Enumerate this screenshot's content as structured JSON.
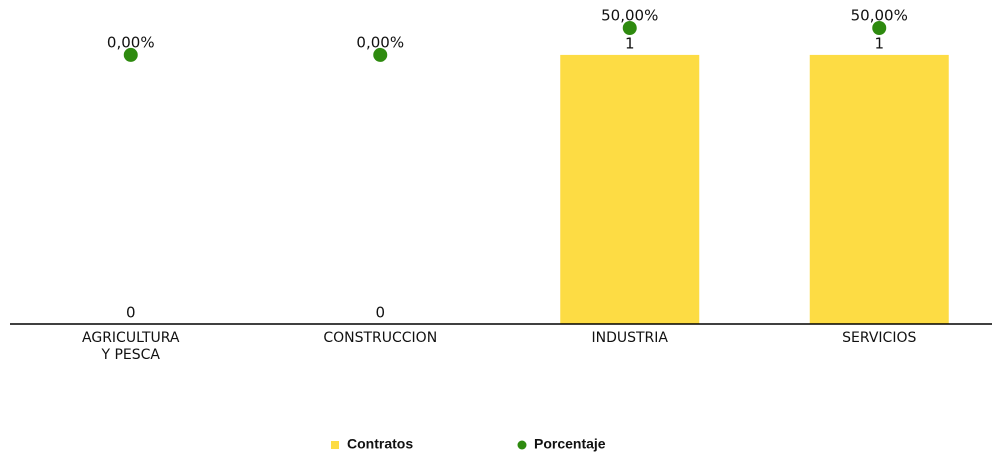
{
  "chart_data": {
    "type": "bar",
    "categories": [
      "AGRICULTURA Y PESCA",
      "CONSTRUCCION",
      "INDUSTRIA",
      "SERVICIOS"
    ],
    "series": [
      {
        "name": "Contratos",
        "type": "bar",
        "color": "#fddc44",
        "values": [
          0,
          0,
          1,
          1
        ]
      },
      {
        "name": "Porcentaje",
        "type": "scatter",
        "axis": "y2",
        "color": "#2e8a0f",
        "values": [
          0,
          0,
          50,
          50
        ],
        "value_labels": [
          "0,00%",
          "0,00%",
          "50,00%",
          "50,00%"
        ]
      }
    ],
    "ylim": [
      0,
      1.1
    ],
    "y2lim": [
      -500,
      50
    ],
    "legend": "bottom"
  }
}
